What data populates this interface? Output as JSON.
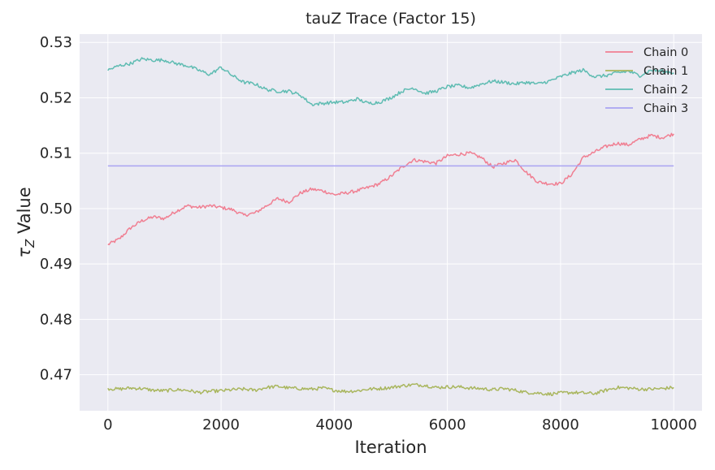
{
  "chart_data": {
    "type": "line",
    "title": "tauZ Trace (Factor 15)",
    "xlabel": "Iteration",
    "ylabel_symbol": "τ",
    "ylabel_subscript": "Z",
    "ylabel_suffix": " Value",
    "xlim": [
      -500,
      10500
    ],
    "ylim": [
      0.4635,
      0.5315
    ],
    "x_ticks": [
      0,
      2000,
      4000,
      6000,
      8000,
      10000
    ],
    "x_tick_labels": [
      "0",
      "2000",
      "4000",
      "6000",
      "8000",
      "10000"
    ],
    "y_ticks": [
      0.47,
      0.48,
      0.49,
      0.5,
      0.51,
      0.52,
      0.53
    ],
    "y_tick_labels": [
      "0.47",
      "0.48",
      "0.49",
      "0.50",
      "0.51",
      "0.52",
      "0.53"
    ],
    "grid": true,
    "legend_position": "top-right",
    "series": [
      {
        "name": "Chain 0",
        "color": "#f07f92",
        "x": [
          0,
          200,
          400,
          600,
          800,
          1000,
          1200,
          1400,
          1600,
          1800,
          2000,
          2200,
          2400,
          2600,
          2800,
          3000,
          3200,
          3400,
          3600,
          3800,
          4000,
          4200,
          4400,
          4600,
          4800,
          5000,
          5200,
          5400,
          5600,
          5800,
          6000,
          6200,
          6400,
          6600,
          6800,
          7000,
          7200,
          7400,
          7600,
          7800,
          8000,
          8200,
          8400,
          8600,
          8800,
          9000,
          9200,
          9400,
          9600,
          9800,
          10000
        ],
        "y": [
          0.4935,
          0.4945,
          0.4965,
          0.4978,
          0.4985,
          0.4982,
          0.4995,
          0.5005,
          0.5002,
          0.5005,
          0.5002,
          0.4998,
          0.4988,
          0.4992,
          0.5005,
          0.5018,
          0.5012,
          0.5028,
          0.5035,
          0.5032,
          0.5025,
          0.5028,
          0.5032,
          0.5038,
          0.5045,
          0.5058,
          0.5075,
          0.5088,
          0.5085,
          0.5082,
          0.5095,
          0.5098,
          0.51,
          0.5092,
          0.5075,
          0.5082,
          0.5088,
          0.5065,
          0.5048,
          0.5045,
          0.5045,
          0.5062,
          0.5092,
          0.5102,
          0.5112,
          0.5118,
          0.5115,
          0.5125,
          0.5132,
          0.5128,
          0.5135
        ]
      },
      {
        "name": "Chain 1",
        "color": "#a9b65e",
        "x": [
          0,
          200,
          400,
          600,
          800,
          1000,
          1200,
          1400,
          1600,
          1800,
          2000,
          2200,
          2400,
          2600,
          2800,
          3000,
          3200,
          3400,
          3600,
          3800,
          4000,
          4200,
          4400,
          4600,
          4800,
          5000,
          5200,
          5400,
          5600,
          5800,
          6000,
          6200,
          6400,
          6600,
          6800,
          7000,
          7200,
          7400,
          7600,
          7800,
          8000,
          8200,
          8400,
          8600,
          8800,
          9000,
          9200,
          9400,
          9600,
          9800,
          10000
        ],
        "y": [
          0.4675,
          0.4674,
          0.4676,
          0.4675,
          0.4672,
          0.4671,
          0.4673,
          0.4672,
          0.4668,
          0.467,
          0.4671,
          0.4673,
          0.4674,
          0.4672,
          0.4677,
          0.4679,
          0.4676,
          0.4675,
          0.4674,
          0.4676,
          0.4672,
          0.467,
          0.4671,
          0.4674,
          0.4675,
          0.4677,
          0.468,
          0.4682,
          0.4681,
          0.4677,
          0.4678,
          0.4678,
          0.4676,
          0.4675,
          0.4673,
          0.4675,
          0.4672,
          0.4668,
          0.4667,
          0.4665,
          0.4667,
          0.4668,
          0.4667,
          0.4666,
          0.4672,
          0.4677,
          0.4676,
          0.4674,
          0.4674,
          0.4675,
          0.4677
        ]
      },
      {
        "name": "Chain 2",
        "color": "#5fbcb2",
        "x": [
          0,
          200,
          400,
          600,
          800,
          1000,
          1200,
          1400,
          1600,
          1800,
          2000,
          2200,
          2400,
          2600,
          2800,
          3000,
          3200,
          3400,
          3600,
          3800,
          4000,
          4200,
          4400,
          4600,
          4800,
          5000,
          5200,
          5400,
          5600,
          5800,
          6000,
          6200,
          6400,
          6600,
          6800,
          7000,
          7200,
          7400,
          7600,
          7800,
          8000,
          8200,
          8400,
          8600,
          8800,
          9000,
          9200,
          9400,
          9600,
          9800,
          10000
        ],
        "y": [
          0.525,
          0.5258,
          0.5262,
          0.527,
          0.5268,
          0.5268,
          0.5262,
          0.5258,
          0.525,
          0.5242,
          0.5255,
          0.524,
          0.5228,
          0.5225,
          0.5215,
          0.5212,
          0.5212,
          0.5205,
          0.5188,
          0.519,
          0.5192,
          0.5192,
          0.5198,
          0.519,
          0.5192,
          0.52,
          0.5212,
          0.5218,
          0.5208,
          0.5212,
          0.522,
          0.5222,
          0.5218,
          0.5225,
          0.523,
          0.5228,
          0.5225,
          0.5228,
          0.5225,
          0.523,
          0.5238,
          0.5245,
          0.525,
          0.5238,
          0.524,
          0.5245,
          0.5248,
          0.524,
          0.525,
          0.5248,
          0.5245
        ]
      },
      {
        "name": "Chain 3",
        "color": "#a9a3f2",
        "x": [
          0,
          10000
        ],
        "y": [
          0.5077,
          0.5077
        ]
      }
    ]
  }
}
